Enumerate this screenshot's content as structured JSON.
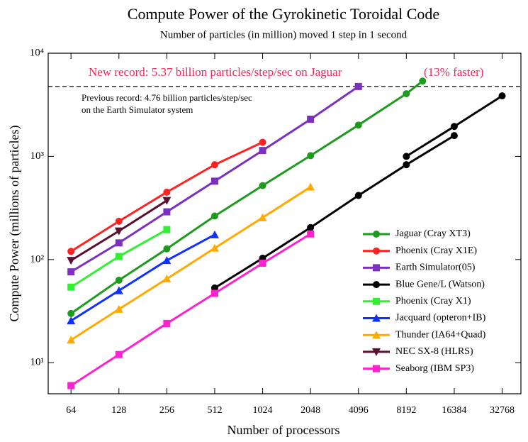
{
  "chart_data": {
    "type": "line",
    "title": "Compute Power of the Gyrokinetic Toroidal Code",
    "subtitle": "Number of particles (in million) moved 1 step in 1 second",
    "xlabel": "Number of processors",
    "ylabel": "Compute Power (millions of particles)",
    "xscale": "log2",
    "yscale": "log",
    "xlim": [
      46,
      43000
    ],
    "ylim": [
      5,
      10000
    ],
    "xticks": [
      64,
      128,
      256,
      512,
      1024,
      2048,
      4096,
      8192,
      16384,
      32768
    ],
    "yticks": [
      {
        "value": 10,
        "label": "10¹"
      },
      {
        "value": 100,
        "label": "10²"
      },
      {
        "value": 1000,
        "label": "10³"
      },
      {
        "value": 10000,
        "label": "10⁴"
      }
    ],
    "reference_line": 4760,
    "annotations": [
      "New record: 5.37 billion particles/step/sec on Jaguar",
      "(13% faster)",
      "Previous record: 4.76 billion particles/step/sec",
      "on the Earth Simulator system"
    ],
    "legend": "lower right",
    "series": [
      {
        "name": "Jaguar (Cray XT3)",
        "color": "#1e9a1e",
        "marker": "circle",
        "x": [
          64,
          128,
          256,
          512,
          1024,
          2048,
          4096,
          8192,
          10368
        ],
        "values": [
          30,
          63,
          127,
          264,
          521,
          1016,
          2010,
          4050,
          5370
        ]
      },
      {
        "name": "Phoenix (Cray X1E)",
        "color": "#ff2222",
        "marker": "circle",
        "x": [
          64,
          128,
          256,
          512,
          1024
        ],
        "values": [
          120,
          235,
          450,
          830,
          1370
        ]
      },
      {
        "name": "Earth Simulator(05)",
        "color": "#7b30c0",
        "marker": "square",
        "x": [
          64,
          128,
          256,
          512,
          1024,
          2048,
          4096
        ],
        "values": [
          76,
          145,
          290,
          575,
          1140,
          2290,
          4760
        ]
      },
      {
        "name": "Blue Gene/L (Watson)",
        "color": "#000000",
        "marker": "circle",
        "x": [
          512,
          1024,
          2048,
          4096,
          8192,
          16384,
          16384,
          8192,
          16384,
          32768
        ],
        "values": [
          53,
          103,
          204,
          418,
          830,
          1590,
          null,
          1000,
          1950,
          3860
        ]
      },
      {
        "name": "Phoenix (Cray X1)",
        "color": "#33ee33",
        "marker": "square",
        "x": [
          64,
          128,
          256
        ],
        "values": [
          54,
          107,
          195
        ]
      },
      {
        "name": "Jacquard (opteron+IB)",
        "color": "#1030ff",
        "marker": "triangle",
        "x": [
          64,
          128,
          256,
          512
        ],
        "values": [
          25.5,
          50,
          98,
          174
        ]
      },
      {
        "name": "Thunder (IA64+Quad)",
        "color": "#ffaa00",
        "marker": "triangle",
        "x": [
          64,
          128,
          256,
          512,
          1024,
          2048
        ],
        "values": [
          16.6,
          33,
          65,
          129,
          255,
          505
        ]
      },
      {
        "name": "NEC SX-8 (HLRS)",
        "color": "#5a1030",
        "marker": "down",
        "x": [
          64,
          128,
          256
        ],
        "values": [
          98,
          189,
          373
        ]
      },
      {
        "name": "Seaborg (IBM SP3)",
        "color": "#ff20d0",
        "marker": "square",
        "x": [
          64,
          128,
          256,
          512,
          1024,
          2048
        ],
        "values": [
          6,
          12,
          24,
          47,
          92,
          177
        ]
      }
    ]
  }
}
